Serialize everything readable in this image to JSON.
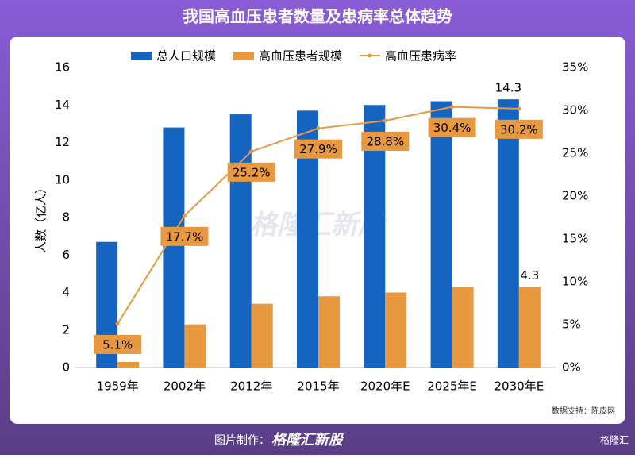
{
  "header": {
    "title": "我国高血压患者数量及患病率总体趋势"
  },
  "chart_data": {
    "type": "bar_line",
    "y_label": "人数（亿人）",
    "categories": [
      "1959年",
      "2002年",
      "2012年",
      "2015年",
      "2020年E",
      "2025年E",
      "2030年E"
    ],
    "series": [
      {
        "name": "总人口规模",
        "type": "bar",
        "color": "#1565c0",
        "values": [
          6.7,
          12.8,
          13.5,
          13.7,
          14.0,
          14.2,
          14.3
        ],
        "value_labels": [
          null,
          null,
          null,
          null,
          null,
          null,
          "14.3"
        ]
      },
      {
        "name": "高血压患者规模",
        "type": "bar",
        "color": "#e8993f",
        "values": [
          0.3,
          2.3,
          3.4,
          3.8,
          4.0,
          4.3,
          4.3
        ],
        "value_labels": [
          null,
          null,
          null,
          null,
          null,
          null,
          "4.3"
        ]
      },
      {
        "name": "高血压患病率",
        "type": "line",
        "axis": "y2",
        "color": "#e8993f",
        "values": [
          5.1,
          17.7,
          25.2,
          27.9,
          28.8,
          30.4,
          30.2
        ],
        "value_labels": [
          "5.1%",
          "17.7%",
          "25.2%",
          "27.9%",
          "28.8%",
          "30.4%",
          "30.2%"
        ]
      }
    ],
    "ylim": [
      0,
      16
    ],
    "yticks": [
      0,
      2,
      4,
      6,
      8,
      10,
      12,
      14,
      16
    ],
    "y2lim": [
      0,
      35
    ],
    "y2ticks": [
      {
        "value": 0,
        "label": "0%"
      },
      {
        "value": 5,
        "label": "5%"
      },
      {
        "value": 10,
        "label": "10%"
      },
      {
        "value": 15,
        "label": "15%"
      },
      {
        "value": 20,
        "label": "20%"
      },
      {
        "value": 25,
        "label": "25%"
      },
      {
        "value": 30,
        "label": "30%"
      },
      {
        "value": 35,
        "label": "35%"
      }
    ],
    "legend": "top"
  },
  "source": "数据支持：陈皮网",
  "watermark": "格隆汇新股",
  "footer": {
    "label": "图片制作：",
    "brand": "格隆汇新股",
    "corner": "格隆汇"
  }
}
